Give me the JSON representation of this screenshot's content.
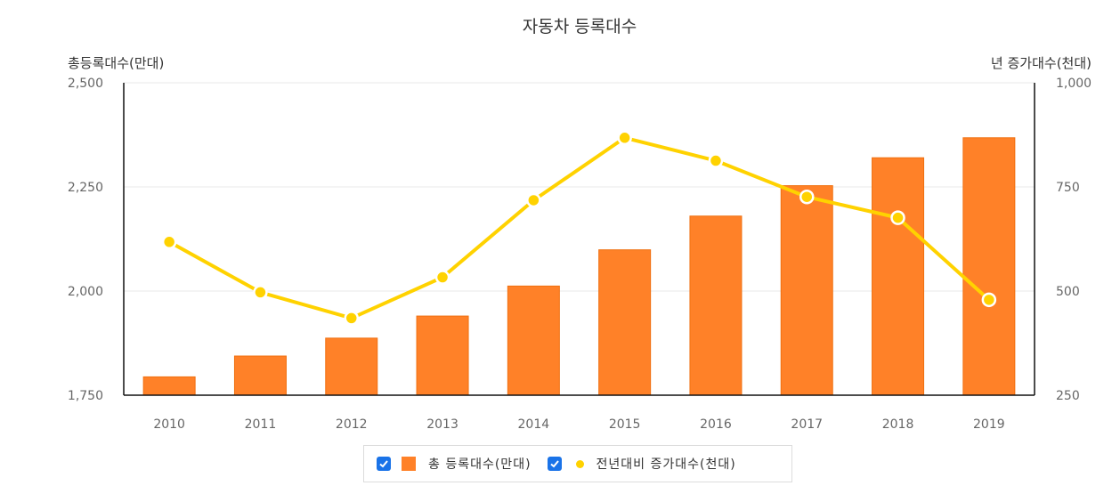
{
  "chart_data": {
    "type": "bar+line",
    "title": "자동차 등록대수",
    "categories": [
      "2010",
      "2011",
      "2012",
      "2013",
      "2014",
      "2015",
      "2016",
      "2017",
      "2018",
      "2019"
    ],
    "y_left": {
      "label": "총등록대수(만대)",
      "min": 1750,
      "max": 2500,
      "ticks": [
        "1,750",
        "2,000",
        "2,250",
        "2,500"
      ],
      "tick_values": [
        1750,
        2000,
        2250,
        2500
      ]
    },
    "y_right": {
      "label": "년 증가대수(천대)",
      "min": 250,
      "max": 1000,
      "ticks": [
        "250",
        "500",
        "750",
        "1,000"
      ],
      "tick_values": [
        250,
        500,
        750,
        1000
      ]
    },
    "series": [
      {
        "name": "총 등록대수(만대)",
        "type": "bar",
        "axis": "left",
        "color": "#ff8128",
        "values": [
          1794,
          1844,
          1887,
          1940,
          2012,
          2099,
          2180,
          2253,
          2320,
          2368
        ]
      },
      {
        "name": "전년대비 증가대수(천대)",
        "type": "line",
        "axis": "right",
        "color": "#ffd200",
        "values": [
          618,
          497,
          435,
          533,
          718,
          868,
          813,
          726,
          676,
          479
        ]
      }
    ],
    "grid": true,
    "legend": "bottom"
  },
  "legend": {
    "items": [
      {
        "label": "총 등록대수(만대)",
        "checked": true
      },
      {
        "label": "전년대비 증가대수(천대)",
        "checked": true
      }
    ]
  }
}
